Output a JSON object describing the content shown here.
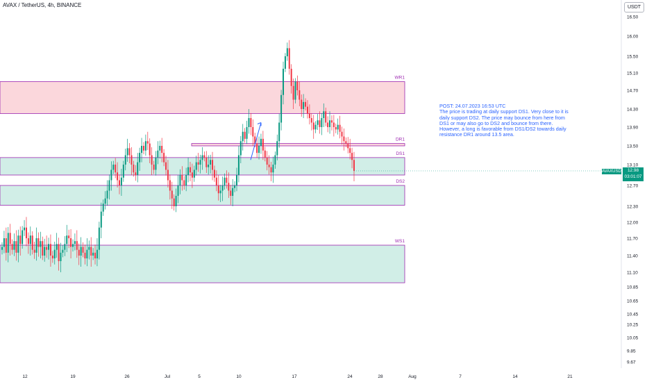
{
  "title": "AVAX / TetherUS, 4h, BINANCE",
  "currency_button": "USDT",
  "note": {
    "lines": [
      "POST: 24.07.2023 16:53 UTC",
      "The price is trading at daily support DS1. Very close to it is",
      "daily support DS2. The price may bounce from here from",
      "DS1 or may also go to DS2 and bounce from there.",
      "However, a long is favorable from DS1/DS2 towards daily",
      "resistance DR1 around 13.5 area."
    ]
  },
  "price_label": {
    "symbol": "AVAXUSDT",
    "price": "12.98",
    "countdown": "03:01:07"
  },
  "colors": {
    "up": "#089981",
    "down": "#f23645",
    "resistance_fill": "#fbd7dc",
    "support_fill": "#d1eee7",
    "zone_border": "#9c27b0",
    "zone_label": "#9c27b0",
    "arrow": "#2962ff",
    "note_text": "#2962ff"
  },
  "chart_data": {
    "type": "candlestick",
    "y_ticks": [
      "16.50",
      "16.00",
      "15.50",
      "15.10",
      "14.70",
      "14.30",
      "13.90",
      "13.50",
      "13.10",
      "12.70",
      "12.30",
      "12.00",
      "11.70",
      "11.40",
      "11.10",
      "10.85",
      "10.65",
      "10.45",
      "10.25",
      "10.05",
      "9.85",
      "9.67"
    ],
    "x_ticks": [
      "12",
      "19",
      "26",
      "Jul",
      "5",
      "10",
      "17",
      "24",
      "28",
      "Aug",
      "7",
      "14",
      "21"
    ],
    "zones": [
      {
        "name": "WR1",
        "type": "resistance",
        "top": 14.9,
        "bottom": 14.2
      },
      {
        "name": "DR1",
        "type": "resistance",
        "top": 13.55,
        "bottom": 13.5
      },
      {
        "name": "DS1",
        "type": "support",
        "top": 13.25,
        "bottom": 12.9
      },
      {
        "name": "DS2",
        "type": "support",
        "top": 12.7,
        "bottom": 12.32
      },
      {
        "name": "WS1",
        "type": "support",
        "top": 11.58,
        "bottom": 10.92
      }
    ],
    "last_price": 12.98,
    "trend_arrow": {
      "from": {
        "date": "Jul 10",
        "price": 13.2
      },
      "to": {
        "date": "Jul 13",
        "price": 14.0
      }
    },
    "candles_close": [
      11.55,
      11.7,
      11.45,
      11.8,
      11.6,
      11.5,
      11.65,
      11.45,
      11.75,
      11.6,
      11.85,
      11.9,
      11.7,
      11.6,
      11.75,
      11.5,
      11.45,
      11.7,
      11.55,
      11.65,
      11.4,
      11.55,
      11.5,
      11.6,
      11.4,
      11.35,
      11.5,
      11.6,
      11.3,
      11.45,
      11.5,
      11.6,
      11.75,
      11.7,
      11.55,
      11.6,
      11.65,
      11.5,
      11.4,
      11.55,
      11.45,
      11.35,
      11.5,
      11.55,
      11.4,
      11.45,
      11.35,
      11.5,
      11.9,
      12.2,
      12.35,
      12.45,
      12.6,
      12.8,
      13.0,
      13.1,
      12.95,
      12.8,
      12.7,
      12.85,
      13.1,
      13.3,
      13.45,
      13.3,
      13.1,
      12.95,
      12.9,
      13.15,
      13.35,
      13.5,
      13.4,
      13.6,
      13.55,
      13.3,
      13.1,
      13.0,
      13.25,
      13.4,
      13.5,
      13.35,
      13.15,
      13.0,
      12.8,
      12.6,
      12.45,
      12.3,
      12.5,
      12.7,
      12.9,
      12.8,
      12.7,
      12.9,
      13.05,
      12.95,
      12.85,
      13.0,
      13.15,
      13.1,
      13.2,
      13.3,
      13.25,
      13.05,
      13.1,
      13.2,
      13.0,
      12.85,
      12.7,
      12.55,
      12.6,
      12.7,
      12.85,
      12.75,
      12.6,
      12.5,
      12.65,
      12.7,
      12.9,
      13.3,
      13.6,
      13.8,
      13.65,
      13.9,
      14.1,
      13.9,
      13.7,
      13.55,
      13.35,
      13.5,
      13.65,
      13.4,
      13.25,
      13.1,
      13.05,
      12.95,
      13.1,
      13.3,
      13.6,
      14.0,
      14.6,
      15.2,
      15.5,
      15.7,
      15.2,
      14.8,
      14.5,
      14.9,
      14.7,
      14.5,
      14.3,
      14.45,
      14.35,
      14.2,
      14.1,
      14.0,
      13.85,
      13.95,
      14.05,
      13.9,
      14.1,
      14.25,
      14.0,
      13.9,
      14.05,
      14.0,
      13.9,
      13.85,
      13.95,
      13.8,
      13.7,
      13.6,
      13.55,
      13.45,
      13.35,
      13.2,
      12.98
    ]
  }
}
